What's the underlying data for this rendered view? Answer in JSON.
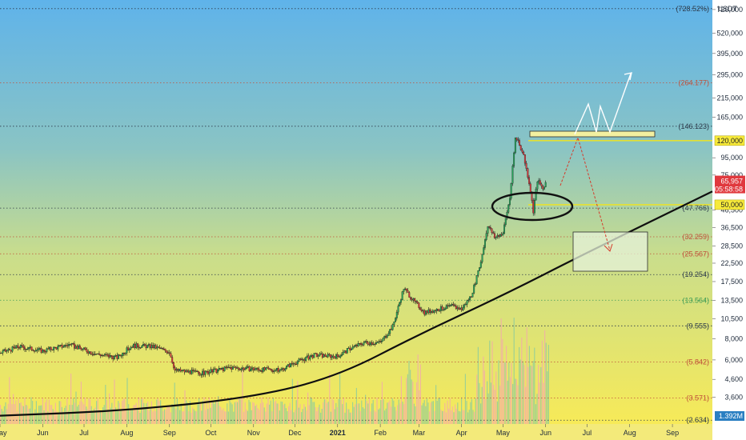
{
  "chart_data": {
    "type": "candlestick",
    "y_scale": "log",
    "currency_label": "USDT",
    "symbol_label": "",
    "ylim": [
      2.5,
      820
    ],
    "y_ticks": [
      {
        "value": 720,
        "label": "720,000"
      },
      {
        "value": 520,
        "label": "520,000"
      },
      {
        "value": 395,
        "label": "395,000"
      },
      {
        "value": 295,
        "label": "295,000"
      },
      {
        "value": 215,
        "label": "215,000"
      },
      {
        "value": 165,
        "label": "165,000"
      },
      {
        "value": 95,
        "label": "95,000"
      },
      {
        "value": 75,
        "label": "75,000"
      },
      {
        "value": 46.5,
        "label": "46,500"
      },
      {
        "value": 36.5,
        "label": "36,500"
      },
      {
        "value": 28.5,
        "label": "28,500"
      },
      {
        "value": 22.5,
        "label": "22,500"
      },
      {
        "value": 17.5,
        "label": "17,500"
      },
      {
        "value": 13.5,
        "label": "13,500"
      },
      {
        "value": 10.5,
        "label": "10,500"
      },
      {
        "value": 8.0,
        "label": "8,000"
      },
      {
        "value": 6.0,
        "label": "6,000"
      },
      {
        "value": 4.6,
        "label": "4,600"
      },
      {
        "value": 3.6,
        "label": "3,600"
      }
    ],
    "x_axis": {
      "start": "2020-05-01",
      "end": "2021-09-30",
      "month_labels": [
        {
          "date": "2020-05-01",
          "label": "May"
        },
        {
          "date": "2020-06-01",
          "label": "Jun"
        },
        {
          "date": "2020-07-01",
          "label": "Jul"
        },
        {
          "date": "2020-08-01",
          "label": "Aug"
        },
        {
          "date": "2020-09-01",
          "label": "Sep"
        },
        {
          "date": "2020-10-01",
          "label": "Oct"
        },
        {
          "date": "2020-11-01",
          "label": "Nov"
        },
        {
          "date": "2020-12-01",
          "label": "Dec"
        },
        {
          "date": "2021-01-01",
          "label": "2021"
        },
        {
          "date": "2021-02-01",
          "label": "Feb"
        },
        {
          "date": "2021-03-01",
          "label": "Mar"
        },
        {
          "date": "2021-04-01",
          "label": "Apr"
        },
        {
          "date": "2021-05-01",
          "label": "May"
        },
        {
          "date": "2021-06-01",
          "label": "Jun"
        },
        {
          "date": "2021-07-01",
          "label": "Jul"
        },
        {
          "date": "2021-08-01",
          "label": "Aug"
        },
        {
          "date": "2021-09-01",
          "label": "Sep"
        }
      ]
    },
    "price_path": [
      {
        "date": "2020-05-01",
        "price": 6.6
      },
      {
        "date": "2020-05-15",
        "price": 7.2
      },
      {
        "date": "2020-06-01",
        "price": 6.8
      },
      {
        "date": "2020-06-20",
        "price": 7.4
      },
      {
        "date": "2020-07-10",
        "price": 6.5
      },
      {
        "date": "2020-07-25",
        "price": 6.2
      },
      {
        "date": "2020-08-05",
        "price": 7.3
      },
      {
        "date": "2020-08-20",
        "price": 7.2
      },
      {
        "date": "2020-09-01",
        "price": 6.7
      },
      {
        "date": "2020-09-05",
        "price": 5.2
      },
      {
        "date": "2020-09-25",
        "price": 5.0
      },
      {
        "date": "2020-10-15",
        "price": 5.4
      },
      {
        "date": "2020-11-01",
        "price": 5.3
      },
      {
        "date": "2020-11-20",
        "price": 5.2
      },
      {
        "date": "2020-12-01",
        "price": 5.8
      },
      {
        "date": "2020-12-15",
        "price": 6.4
      },
      {
        "date": "2021-01-01",
        "price": 6.3
      },
      {
        "date": "2021-01-10",
        "price": 7.0
      },
      {
        "date": "2021-01-20",
        "price": 7.6
      },
      {
        "date": "2021-02-01",
        "price": 7.6
      },
      {
        "date": "2021-02-10",
        "price": 9.5
      },
      {
        "date": "2021-02-18",
        "price": 16.0
      },
      {
        "date": "2021-02-25",
        "price": 13.5
      },
      {
        "date": "2021-03-05",
        "price": 11.5
      },
      {
        "date": "2021-03-15",
        "price": 12.0
      },
      {
        "date": "2021-03-25",
        "price": 12.5
      },
      {
        "date": "2021-04-01",
        "price": 12.0
      },
      {
        "date": "2021-04-08",
        "price": 14.5
      },
      {
        "date": "2021-04-14",
        "price": 21.0
      },
      {
        "date": "2021-04-20",
        "price": 38.0
      },
      {
        "date": "2021-04-25",
        "price": 32.0
      },
      {
        "date": "2021-05-01",
        "price": 34.0
      },
      {
        "date": "2021-05-06",
        "price": 55.0
      },
      {
        "date": "2021-05-10",
        "price": 124.0
      },
      {
        "date": "2021-05-12",
        "price": 120.0
      },
      {
        "date": "2021-05-16",
        "price": 98.0
      },
      {
        "date": "2021-05-20",
        "price": 68.0
      },
      {
        "date": "2021-05-23",
        "price": 46.0
      },
      {
        "date": "2021-05-26",
        "price": 70.0
      },
      {
        "date": "2021-05-30",
        "price": 62.0
      },
      {
        "date": "2021-06-01",
        "price": 65.957
      }
    ],
    "volume_max_label": "",
    "levels": [
      {
        "value": 728.52,
        "label": "(728.52%)",
        "color": "#2d3a4a"
      },
      {
        "value": 264.177,
        "label": "(264.177)",
        "color": "#c0503a"
      },
      {
        "value": 146.123,
        "label": "(146.123)",
        "color": "#2d3a4a"
      },
      {
        "value": 47.766,
        "label": "(47.766)",
        "color": "#2d3a4a"
      },
      {
        "value": 32.259,
        "label": "(32.259)",
        "color": "#c0503a"
      },
      {
        "value": 25.567,
        "label": "(25.567)",
        "color": "#c0503a"
      },
      {
        "value": 19.254,
        "label": "(19.254)",
        "color": "#2d3a4a"
      },
      {
        "value": 13.564,
        "label": "(13.564)",
        "color": "#3a9a55"
      },
      {
        "value": 9.555,
        "label": "(9.555)",
        "color": "#2d3a4a"
      },
      {
        "value": 5.842,
        "label": "(5.842)",
        "color": "#c0503a"
      },
      {
        "value": 3.571,
        "label": "(3.571)",
        "color": "#c0503a"
      },
      {
        "value": 2.634,
        "label": "(2.634)",
        "color": "#2d3a4a"
      }
    ],
    "key_levels": [
      {
        "value": 120.0,
        "label": "120,000"
      },
      {
        "value": 50.0,
        "label": "50,000"
      }
    ],
    "current_price": {
      "value": 65.957,
      "label": "65,957",
      "countdown": "05:58:58"
    },
    "volume_tag": "1.392M",
    "support_curve": [
      {
        "date": "2020-05-01",
        "price": 2.8
      },
      {
        "date": "2020-08-01",
        "price": 3.0
      },
      {
        "date": "2020-11-01",
        "price": 3.6
      },
      {
        "date": "2021-01-01",
        "price": 4.8
      },
      {
        "date": "2021-03-01",
        "price": 8.5
      },
      {
        "date": "2021-05-01",
        "price": 14.5
      },
      {
        "date": "2021-07-01",
        "price": 26.0
      },
      {
        "date": "2021-09-30",
        "price": 60.0
      }
    ]
  }
}
